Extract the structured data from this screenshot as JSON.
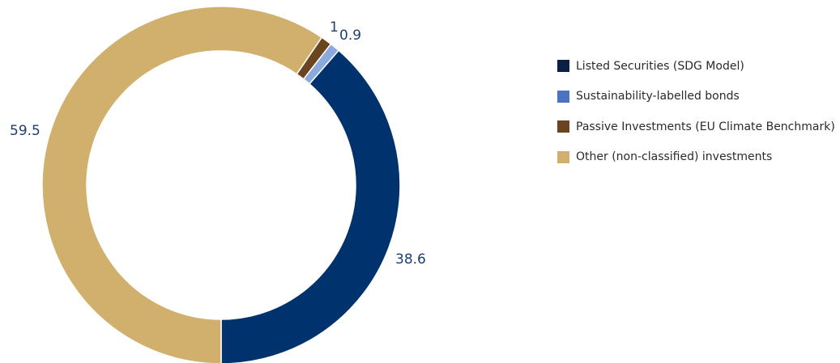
{
  "chart_data": {
    "type": "pie",
    "style": "donut",
    "categories": [
      "Listed Securities (SDG Model)",
      "Sustainability-labelled bonds",
      "Passive Investments (EU Climate Benchmark)",
      "Other (non-classified) investments"
    ],
    "values": [
      38.6,
      0.9,
      1,
      59.5
    ],
    "value_labels": [
      "38.6",
      "0.9",
      "1",
      "59.5"
    ],
    "colors": [
      "#00336e",
      "#8aaade",
      "#6b4520",
      "#d1b06d"
    ],
    "legend_colors": [
      "#0a2145",
      "#4a74c2",
      "#6b4520",
      "#d1b06d"
    ],
    "legend_position": "right",
    "start": "bottom",
    "direction": "counterclockwise"
  }
}
